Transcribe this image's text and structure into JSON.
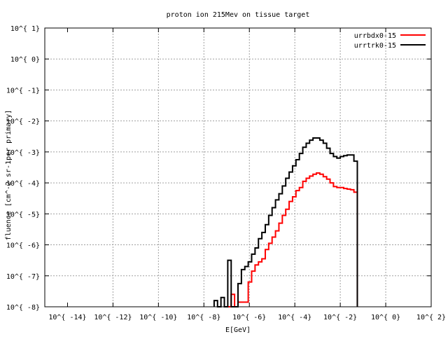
{
  "chart_data": {
    "type": "line",
    "title": "proton ion 215Mev on tissue target",
    "xlabel": "E[GeV]",
    "ylabel": "fluence [cm^-2 sr-1per primary]",
    "x_scale": "log",
    "y_scale": "log",
    "xlim_exp": [
      -15,
      2
    ],
    "ylim_exp": [
      -8,
      1
    ],
    "x_tick_labels": [
      "10^{ -14}",
      "10^{ -12}",
      "10^{ -10}",
      "10^{ -8}",
      "10^{ -6}",
      "10^{ -4}",
      "10^{ -2}",
      "10^{ 0}",
      "10^{ 2}"
    ],
    "y_tick_labels": [
      "10^{ -8}",
      "10^{ -7}",
      "10^{ -6}",
      "10^{ -5}",
      "10^{ -4}",
      "10^{ -3}",
      "10^{ -2}",
      "10^{ -1}",
      "10^{ 0}",
      "10^{ 1}"
    ],
    "grid": true,
    "legend_position": "top-right",
    "series": [
      {
        "name": "urrbdx0-15",
        "color": "#ff0000",
        "points": [
          [
            -6.95,
            -8.0
          ],
          [
            -6.8,
            -7.6
          ],
          [
            -6.65,
            -8.0
          ],
          [
            -6.5,
            -7.85
          ],
          [
            -6.2,
            -7.85
          ],
          [
            -6.05,
            -7.2
          ],
          [
            -5.9,
            -6.85
          ],
          [
            -5.75,
            -6.65
          ],
          [
            -5.6,
            -6.55
          ],
          [
            -5.45,
            -6.45
          ],
          [
            -5.3,
            -6.15
          ],
          [
            -5.15,
            -5.95
          ],
          [
            -5.0,
            -5.75
          ],
          [
            -4.85,
            -5.55
          ],
          [
            -4.7,
            -5.3
          ],
          [
            -4.55,
            -5.05
          ],
          [
            -4.4,
            -4.85
          ],
          [
            -4.25,
            -4.6
          ],
          [
            -4.1,
            -4.45
          ],
          [
            -3.95,
            -4.25
          ],
          [
            -3.8,
            -4.15
          ],
          [
            -3.65,
            -3.95
          ],
          [
            -3.5,
            -3.85
          ],
          [
            -3.35,
            -3.78
          ],
          [
            -3.2,
            -3.72
          ],
          [
            -3.05,
            -3.68
          ],
          [
            -2.9,
            -3.72
          ],
          [
            -2.75,
            -3.8
          ],
          [
            -2.6,
            -3.88
          ],
          [
            -2.45,
            -4.0
          ],
          [
            -2.3,
            -4.12
          ],
          [
            -2.15,
            -4.15
          ],
          [
            -2.0,
            -4.15
          ],
          [
            -1.85,
            -4.18
          ],
          [
            -1.7,
            -4.2
          ],
          [
            -1.55,
            -4.22
          ],
          [
            -1.4,
            -4.3
          ]
        ]
      },
      {
        "name": "urrtrk0-15",
        "color": "#000000",
        "points": [
          [
            -7.55,
            -7.8
          ],
          [
            -7.4,
            -8.0
          ],
          [
            -7.25,
            -7.7
          ],
          [
            -7.1,
            -8.0
          ],
          [
            -6.95,
            -6.5
          ],
          [
            -6.8,
            -8.0
          ],
          [
            -6.65,
            -8.0
          ],
          [
            -6.5,
            -7.25
          ],
          [
            -6.35,
            -6.8
          ],
          [
            -6.2,
            -6.7
          ],
          [
            -6.05,
            -6.55
          ],
          [
            -5.9,
            -6.3
          ],
          [
            -5.75,
            -6.1
          ],
          [
            -5.6,
            -5.8
          ],
          [
            -5.45,
            -5.6
          ],
          [
            -5.3,
            -5.35
          ],
          [
            -5.15,
            -5.05
          ],
          [
            -5.0,
            -4.8
          ],
          [
            -4.85,
            -4.55
          ],
          [
            -4.7,
            -4.35
          ],
          [
            -4.55,
            -4.1
          ],
          [
            -4.4,
            -3.85
          ],
          [
            -4.25,
            -3.65
          ],
          [
            -4.1,
            -3.45
          ],
          [
            -3.95,
            -3.25
          ],
          [
            -3.8,
            -3.05
          ],
          [
            -3.65,
            -2.85
          ],
          [
            -3.5,
            -2.72
          ],
          [
            -3.35,
            -2.62
          ],
          [
            -3.2,
            -2.55
          ],
          [
            -3.05,
            -2.55
          ],
          [
            -2.9,
            -2.62
          ],
          [
            -2.75,
            -2.72
          ],
          [
            -2.6,
            -2.88
          ],
          [
            -2.45,
            -3.05
          ],
          [
            -2.3,
            -3.15
          ],
          [
            -2.15,
            -3.2
          ],
          [
            -2.0,
            -3.15
          ],
          [
            -1.85,
            -3.12
          ],
          [
            -1.7,
            -3.1
          ],
          [
            -1.55,
            -3.1
          ],
          [
            -1.4,
            -3.3
          ]
        ]
      }
    ]
  }
}
